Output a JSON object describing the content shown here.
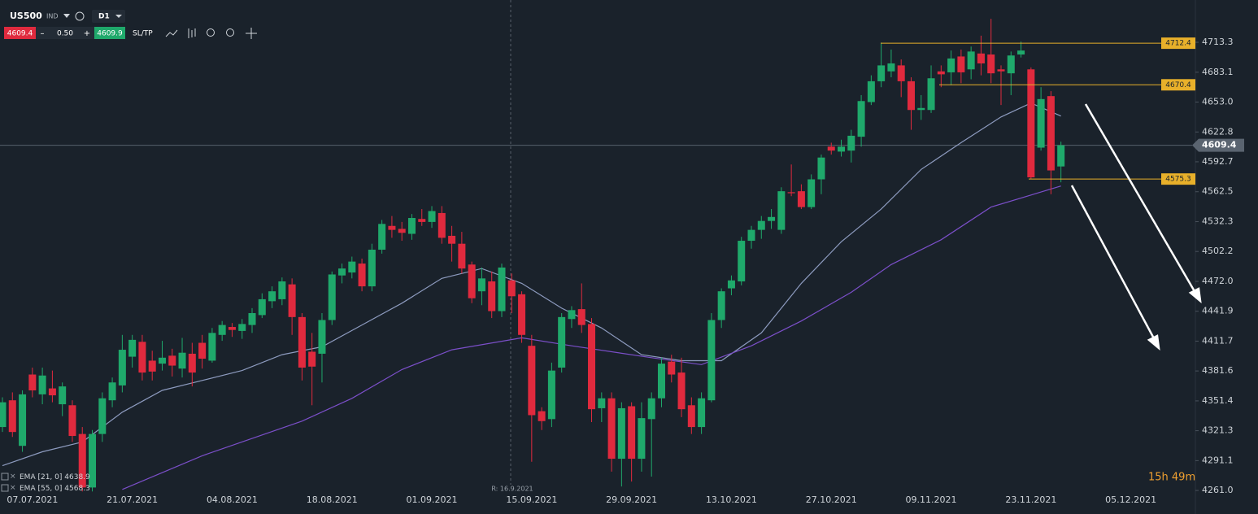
{
  "toolbar": {
    "symbol": "US500",
    "market": "IND",
    "interval": "D1",
    "bid": "4609.4",
    "spread": "0.50",
    "ask": "4609.9",
    "sl_tp": "SL/TP"
  },
  "timer": "15h 49m",
  "crosshair_label": "R: 16.9.2021",
  "chart_data": {
    "type": "candlestick",
    "categories": [
      null,
      null,
      null,
      "07.07.2021",
      null,
      null,
      null,
      null,
      null,
      null,
      null,
      null,
      null,
      "21.07.2021",
      null,
      null,
      null,
      null,
      null,
      null,
      null,
      null,
      null,
      "04.08.2021",
      null,
      null,
      null,
      null,
      null,
      null,
      null,
      null,
      null,
      "18.08.2021",
      null,
      null,
      null,
      null,
      null,
      null,
      null,
      null,
      null,
      "01.09.2021",
      null,
      null,
      null,
      null,
      null,
      null,
      null,
      null,
      null,
      "15.09.2021",
      null,
      null,
      null,
      null,
      null,
      null,
      null,
      null,
      null,
      "29.09.2021",
      null,
      null,
      null,
      null,
      null,
      null,
      null,
      null,
      null,
      "13.10.2021",
      null,
      null,
      null,
      null,
      null,
      null,
      null,
      null,
      null,
      "27.10.2021",
      null,
      null,
      null,
      null,
      null,
      null,
      null,
      null,
      null,
      "09.11.2021",
      null,
      null,
      null,
      null,
      null,
      null,
      null,
      null,
      null,
      "23.11.2021",
      null,
      null,
      null,
      null,
      null,
      null,
      null,
      null,
      null,
      "05.12.2021"
    ],
    "open": [
      4325,
      4352,
      4306,
      4378,
      4358,
      4364,
      4348,
      4347,
      4318,
      4264,
      4318,
      4352,
      4367,
      4396,
      4411,
      4392,
      4389,
      4397,
      4384,
      4399,
      4410,
      4392,
      4418,
      4426,
      4422,
      4428,
      4438,
      4452,
      4454,
      4469,
      4436,
      4401,
      4399,
      4433,
      4478,
      4481,
      4490,
      4467,
      4504,
      4528,
      4525,
      4520,
      4535,
      4532,
      4541,
      4518,
      4510,
      4489,
      4462,
      4472,
      4442,
      4473,
      4459,
      4407,
      4341,
      4333,
      4385,
      4434,
      4444,
      4429,
      4344,
      4354,
      4293,
      4346,
      4293,
      4333,
      4354,
      4391,
      4380,
      4347,
      4325,
      4352,
      4433,
      4465,
      4472,
      4513,
      4524,
      4533,
      4524,
      4562,
      4563,
      4547,
      4575,
      4608,
      4603,
      4604,
      4618,
      4653,
      4674,
      4684,
      4690,
      4674,
      4645,
      4645,
      4684,
      4683,
      4699,
      4686,
      4702,
      4701,
      4686,
      4682,
      4701,
      4686,
      4607,
      4659,
      4588,
      null,
      null,
      null,
      null,
      null,
      null,
      null
    ],
    "high": [
      4355,
      4360,
      4362,
      4385,
      4385,
      4382,
      4370,
      4352,
      4325,
      4322,
      4360,
      4375,
      4418,
      4418,
      4418,
      4402,
      4412,
      4404,
      4415,
      4410,
      4418,
      4425,
      4432,
      4430,
      4434,
      4445,
      4460,
      4467,
      4476,
      4475,
      4440,
      4420,
      4440,
      4482,
      4490,
      4497,
      4495,
      4510,
      4534,
      4538,
      4532,
      4540,
      4545,
      4548,
      4548,
      4528,
      4522,
      4492,
      4486,
      4482,
      4490,
      4480,
      4462,
      4418,
      4345,
      4390,
      4440,
      4447,
      4470,
      4435,
      4360,
      4360,
      4350,
      4350,
      4350,
      4360,
      4395,
      4398,
      4395,
      4355,
      4360,
      4440,
      4465,
      4478,
      4517,
      4528,
      4538,
      4545,
      4567,
      4590,
      4570,
      4580,
      4600,
      4612,
      4615,
      4625,
      4660,
      4680,
      4713,
      4706,
      4696,
      4678,
      4660,
      4690,
      4690,
      4705,
      4706,
      4709,
      4720,
      4737,
      4690,
      4704,
      4714,
      4688,
      4668,
      4664,
      4613,
      null,
      null,
      null,
      null,
      null,
      null,
      null
    ],
    "low": [
      4320,
      4315,
      4300,
      4355,
      4348,
      4350,
      4336,
      4310,
      4260,
      4260,
      4310,
      4345,
      4360,
      4385,
      4372,
      4372,
      4382,
      4376,
      4375,
      4366,
      4384,
      4390,
      4412,
      4416,
      4414,
      4420,
      4435,
      4445,
      4448,
      4418,
      4372,
      4347,
      4370,
      4428,
      4470,
      4475,
      4462,
      4462,
      4500,
      4516,
      4513,
      4514,
      4528,
      4526,
      4510,
      4492,
      4480,
      4450,
      4448,
      4435,
      4436,
      4440,
      4410,
      4290,
      4322,
      4325,
      4380,
      4425,
      4420,
      4330,
      4330,
      4280,
      4265,
      4270,
      4280,
      4275,
      4345,
      4370,
      4335,
      4318,
      4318,
      4350,
      4425,
      4458,
      4468,
      4505,
      4515,
      4525,
      4520,
      4558,
      4545,
      4545,
      4560,
      4600,
      4598,
      4592,
      4608,
      4650,
      4668,
      4678,
      4658,
      4625,
      4635,
      4642,
      4668,
      4670,
      4672,
      4676,
      4680,
      4672,
      4650,
      4660,
      4698,
      4575,
      4604,
      4560,
      4572,
      null,
      null,
      null,
      null,
      null,
      null,
      null
    ],
    "close": [
      4350,
      4320,
      4358,
      4362,
      4377,
      4357,
      4366,
      4316,
      4264,
      4318,
      4354,
      4370,
      4403,
      4413,
      4380,
      4381,
      4395,
      4387,
      4400,
      4380,
      4394,
      4420,
      4428,
      4423,
      4429,
      4440,
      4454,
      4462,
      4472,
      4436,
      4385,
      4386,
      4433,
      4479,
      4485,
      4492,
      4467,
      4504,
      4530,
      4524,
      4521,
      4536,
      4532,
      4543,
      4516,
      4510,
      4485,
      4455,
      4475,
      4442,
      4486,
      4457,
      4418,
      4337,
      4331,
      4382,
      4436,
      4443,
      4428,
      4343,
      4354,
      4293,
      4344,
      4293,
      4334,
      4354,
      4389,
      4378,
      4343,
      4325,
      4354,
      4433,
      4462,
      4473,
      4513,
      4524,
      4533,
      4537,
      4563,
      4561,
      4547,
      4575,
      4597,
      4604,
      4608,
      4619,
      4654,
      4674,
      4690,
      4692,
      4674,
      4645,
      4647,
      4677,
      4681,
      4697,
      4683,
      4704,
      4692,
      4682,
      4684,
      4700,
      4705,
      4577,
      4656,
      4584,
      4609.4,
      null,
      null,
      null,
      null,
      null,
      null,
      null
    ],
    "up_color": "#1fa96b",
    "down_color": "#e02a3e",
    "ylim": [
      4259.4,
      4756.0
    ],
    "yticks": [
      4713.3,
      4683.1,
      {
        "value": 4653.0,
        "label": "4653.0"
      },
      4622.8,
      4592.7,
      4562.5,
      4532.3,
      4502.2,
      {
        "value": 4472.0,
        "label": "4472.0"
      },
      4441.9,
      4411.7,
      4381.6,
      4351.4,
      4321.3,
      4291.1,
      {
        "value": 4261.0,
        "label": "4261.0"
      }
    ],
    "grid": false,
    "current_price": 4609.4,
    "levels": [
      4712.4,
      4670.4,
      4575.3
    ],
    "level_color": "#e8b02a",
    "overlays": [
      {
        "name": "EMA [21, 0]",
        "color": "#8d9bbf",
        "x": [
          0,
          4,
          8,
          12,
          16,
          20,
          24,
          28,
          32,
          36,
          40,
          44,
          48,
          52,
          56,
          60,
          64,
          68,
          72,
          76,
          80,
          84,
          88,
          92,
          96,
          100,
          103,
          106
        ],
        "values": [
          4286,
          4300,
          4310,
          4340,
          4362,
          4372,
          4382,
          4398,
          4406,
          4428,
          4450,
          4475,
          4485,
          4470,
          4445,
          4425,
          4398,
          4392,
          4392,
          4420,
          4470,
          4512,
          4545,
          4585,
          4612,
          4638,
          4652,
          4638.9
        ]
      },
      {
        "name": "EMA [55, 0]",
        "color": "#7b4fc9",
        "x": [
          12,
          20,
          30,
          35,
          40,
          45,
          52,
          57,
          65,
          70,
          75,
          80,
          85,
          89,
          94,
          99,
          106
        ],
        "values": [
          4262,
          4296,
          4331,
          4354,
          4383,
          4403,
          4415,
          4407,
          4395,
          4388,
          4407,
          4432,
          4461,
          4489,
          4514,
          4547,
          4568.3
        ]
      }
    ]
  }
}
